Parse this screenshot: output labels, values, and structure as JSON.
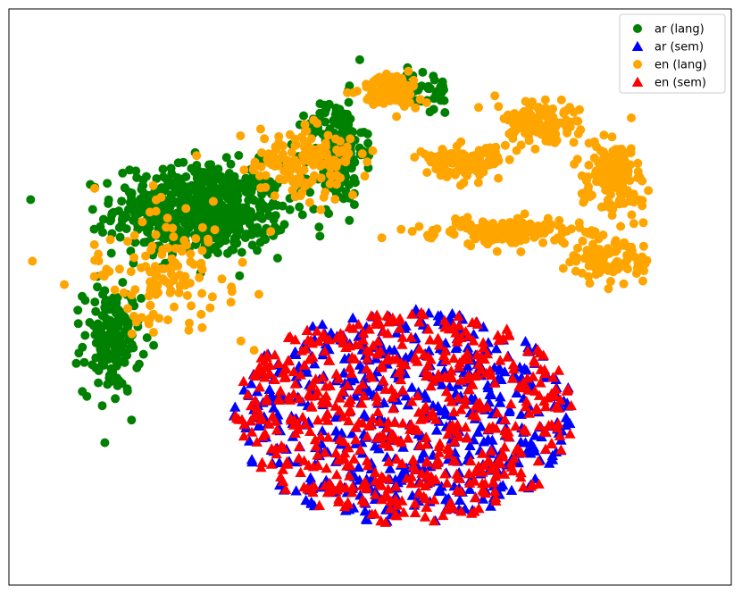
{
  "chart_data": {
    "type": "scatter",
    "title": "",
    "xlabel": "",
    "ylabel": "",
    "xlim": [
      0,
      100
    ],
    "ylim": [
      0,
      100
    ],
    "axes_ticks": "none",
    "grid": false,
    "legend_position": "top-right",
    "note": "t-SNE style 2D embedding; coordinates are unitless and reconstructed approximately as cluster centers",
    "series": [
      {
        "name": "ar (lang)",
        "marker": "circle",
        "color": "#008000",
        "clusters": [
          {
            "x": 25,
            "y": 66,
            "sx": 9,
            "sy": 6,
            "n": 620
          },
          {
            "x": 12,
            "y": 42,
            "sx": 3,
            "sy": 7,
            "n": 160
          },
          {
            "x": 45,
            "y": 77,
            "sx": 3,
            "sy": 7,
            "n": 200
          },
          {
            "x": 58,
            "y": 88,
            "sx": 3,
            "sy": 3,
            "n": 40
          }
        ]
      },
      {
        "name": "ar (sem)",
        "marker": "triangle",
        "color": "#0000ff",
        "clusters": [
          {
            "x": 55,
            "y": 28,
            "sx": 14,
            "sy": 11,
            "n": 620
          }
        ]
      },
      {
        "name": "en (lang)",
        "marker": "circle",
        "color": "#ffa500",
        "clusters": [
          {
            "x": 20,
            "y": 55,
            "sx": 8,
            "sy": 8,
            "n": 130
          },
          {
            "x": 40,
            "y": 75,
            "sx": 6,
            "sy": 5,
            "n": 150
          },
          {
            "x": 53,
            "y": 88,
            "sx": 3,
            "sy": 2.5,
            "n": 120
          },
          {
            "x": 64,
            "y": 75,
            "sx": 4,
            "sy": 2,
            "n": 120
          },
          {
            "x": 75,
            "y": 82,
            "sx": 4,
            "sy": 3,
            "n": 120
          },
          {
            "x": 86,
            "y": 72,
            "sx": 3,
            "sy": 6,
            "n": 160
          },
          {
            "x": 70,
            "y": 62,
            "sx": 8,
            "sy": 2,
            "n": 140
          },
          {
            "x": 85,
            "y": 57,
            "sx": 4,
            "sy": 3,
            "n": 100
          }
        ]
      },
      {
        "name": "en (sem)",
        "marker": "triangle",
        "color": "#ff0000",
        "clusters": [
          {
            "x": 55,
            "y": 28,
            "sx": 14,
            "sy": 11,
            "n": 620
          }
        ]
      }
    ]
  }
}
